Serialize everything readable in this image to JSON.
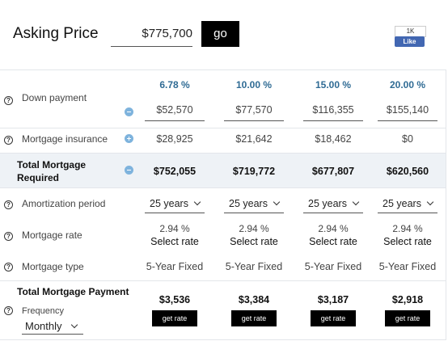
{
  "header": {
    "label": "Asking Price",
    "asking_price": "$775,700",
    "go_button": "go",
    "like_count": "1K",
    "like_label": "Like"
  },
  "down_payment": {
    "label": "Down payment",
    "percents": [
      "6.78 %",
      "10.00 %",
      "15.00 %",
      "20.00 %"
    ],
    "amounts": [
      "$52,570",
      "$77,570",
      "$116,355",
      "$155,140"
    ]
  },
  "mortgage_insurance": {
    "label": "Mortgage insurance",
    "values": [
      "$28,925",
      "$21,642",
      "$18,462",
      "$0"
    ]
  },
  "total_required": {
    "label": "Total Mortgage Required",
    "values": [
      "$752,055",
      "$719,772",
      "$677,807",
      "$620,560"
    ]
  },
  "amortization": {
    "label": "Amortization period",
    "values": [
      "25 years",
      "25 years",
      "25 years",
      "25 years"
    ]
  },
  "mortgage_rate": {
    "label": "Mortgage rate",
    "rates": [
      "2.94 %",
      "2.94 %",
      "2.94 %",
      "2.94 %"
    ],
    "actions": [
      "Select rate",
      "Select rate",
      "Select rate",
      "Select rate"
    ]
  },
  "mortgage_type": {
    "label": "Mortgage type",
    "values": [
      "5-Year Fixed",
      "5-Year Fixed",
      "5-Year Fixed",
      "5-Year Fixed"
    ]
  },
  "total_payment": {
    "label": "Total Mortgage Payment",
    "values": [
      "$3,536",
      "$3,384",
      "$3,187",
      "$2,918"
    ],
    "buttons": [
      "get rate",
      "get rate",
      "get rate",
      "get rate"
    ],
    "frequency_label": "Frequency",
    "frequency": "Monthly"
  }
}
